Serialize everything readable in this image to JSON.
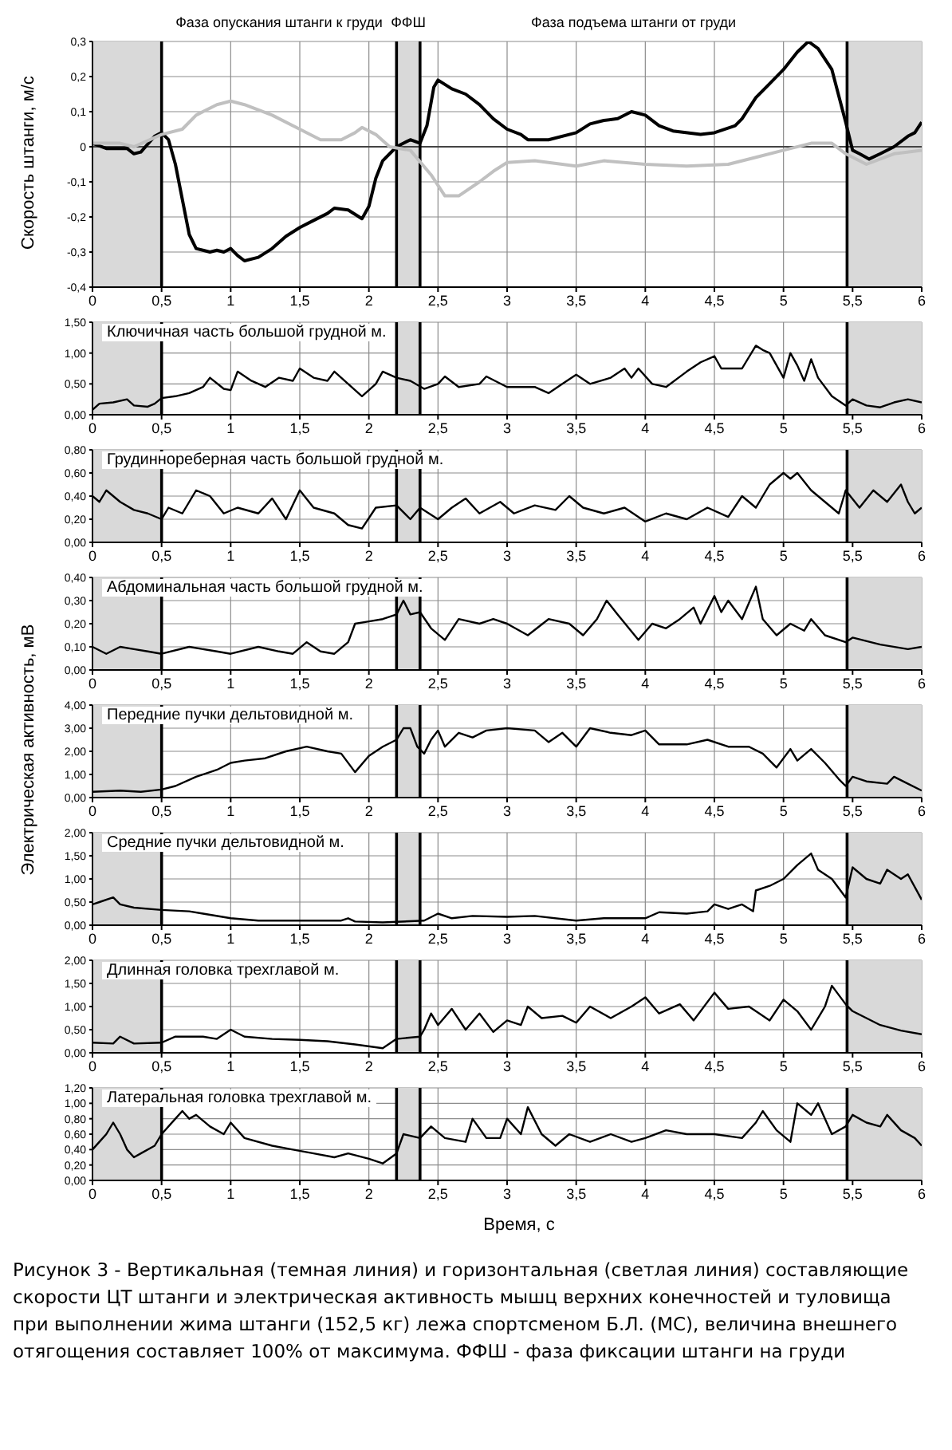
{
  "chart_data": [
    {
      "type": "line",
      "ylabel": "Скорость штанги, м/с",
      "annotations": [
        "Фаза опускания штанги к груди",
        "ФФШ",
        "Фаза подъема штанги от груди"
      ],
      "series": [
        {
          "color": "#000000",
          "x": [
            0,
            0.1,
            0.25,
            0.3,
            0.35,
            0.45,
            0.5,
            0.55,
            0.6,
            0.65,
            0.7,
            0.75,
            0.85,
            0.9,
            0.95,
            1.0,
            1.05,
            1.1,
            1.2,
            1.3,
            1.4,
            1.5,
            1.6,
            1.7,
            1.75,
            1.85,
            1.95,
            2.0,
            2.05,
            2.1,
            2.2,
            2.3,
            2.37,
            2.42,
            2.47,
            2.5,
            2.6,
            2.7,
            2.8,
            2.9,
            3.0,
            3.1,
            3.15,
            3.3,
            3.5,
            3.6,
            3.7,
            3.8,
            3.9,
            4.0,
            4.1,
            4.2,
            4.4,
            4.5,
            4.65,
            4.7,
            4.8,
            4.9,
            5.0,
            5.1,
            5.18,
            5.25,
            5.35,
            5.45,
            5.5,
            5.55,
            5.62,
            5.7,
            5.8,
            5.9,
            5.95,
            6.0
          ],
          "values": [
            0.01,
            -0.005,
            -0.005,
            -0.02,
            -0.015,
            0.03,
            0.04,
            0.02,
            -0.05,
            -0.15,
            -0.25,
            -0.29,
            -0.3,
            -0.295,
            -0.3,
            -0.29,
            -0.31,
            -0.325,
            -0.315,
            -0.29,
            -0.255,
            -0.23,
            -0.21,
            -0.19,
            -0.175,
            -0.18,
            -0.205,
            -0.17,
            -0.09,
            -0.04,
            0.0,
            0.02,
            0.01,
            0.06,
            0.17,
            0.19,
            0.165,
            0.15,
            0.12,
            0.08,
            0.05,
            0.035,
            0.02,
            0.02,
            0.04,
            0.065,
            0.075,
            0.08,
            0.1,
            0.09,
            0.06,
            0.045,
            0.035,
            0.04,
            0.06,
            0.08,
            0.14,
            0.18,
            0.22,
            0.27,
            0.3,
            0.28,
            0.22,
            0.07,
            -0.01,
            -0.02,
            -0.035,
            -0.02,
            0.0,
            0.03,
            0.04,
            0.07
          ]
        },
        {
          "color": "#c0c0c0",
          "x": [
            0,
            0.2,
            0.3,
            0.5,
            0.65,
            0.75,
            0.9,
            1.0,
            1.1,
            1.3,
            1.5,
            1.65,
            1.8,
            1.9,
            1.95,
            2.05,
            2.15,
            2.3,
            2.45,
            2.55,
            2.65,
            2.8,
            2.9,
            3.0,
            3.2,
            3.5,
            3.7,
            4.0,
            4.3,
            4.6,
            4.8,
            5.0,
            5.2,
            5.35,
            5.45,
            5.6,
            5.8,
            6.0
          ],
          "values": [
            0.01,
            0.01,
            0.0,
            0.035,
            0.05,
            0.09,
            0.12,
            0.13,
            0.12,
            0.09,
            0.05,
            0.02,
            0.02,
            0.04,
            0.055,
            0.035,
            0.0,
            -0.01,
            -0.08,
            -0.14,
            -0.14,
            -0.1,
            -0.07,
            -0.045,
            -0.04,
            -0.055,
            -0.04,
            -0.05,
            -0.055,
            -0.05,
            -0.03,
            -0.01,
            0.01,
            0.01,
            -0.02,
            -0.05,
            -0.02,
            -0.01
          ]
        }
      ],
      "xlim": [
        0,
        6
      ],
      "xticks": [
        0,
        {
          "value": 0.5,
          "label": "0,5"
        },
        1,
        {
          "value": 1.5,
          "label": "1,5"
        },
        2,
        {
          "value": 2.5,
          "label": "2,5"
        },
        3,
        {
          "value": 3.5,
          "label": "3,5"
        },
        4,
        {
          "value": 4.5,
          "label": "4,5"
        },
        5,
        {
          "value": 5.5,
          "label": "5,5"
        },
        6
      ],
      "ylim": [
        -0.4,
        0.3
      ],
      "yticks": [
        {
          "value": -0.4,
          "label": "-0,4"
        },
        {
          "value": -0.3,
          "label": "-0,3"
        },
        {
          "value": -0.2,
          "label": "-0,2"
        },
        {
          "value": -0.1,
          "label": "-0,1"
        },
        0,
        {
          "value": 0.1,
          "label": "0,1"
        },
        {
          "value": 0.2,
          "label": "0,2"
        },
        {
          "value": 0.3,
          "label": "0,3"
        }
      ],
      "grid": true,
      "bands": [
        {
          "axis": "x",
          "from": 0,
          "to": 0.5,
          "color": "#d9d9d9"
        },
        {
          "axis": "x",
          "from": 2.2,
          "to": 2.37,
          "color": "#d9d9d9"
        },
        {
          "axis": "x",
          "from": 5.46,
          "to": 6,
          "color": "#d9d9d9"
        }
      ],
      "ref_lines": [
        {
          "axis": "x",
          "value": 0.5,
          "color": "#000000"
        },
        {
          "axis": "x",
          "value": 2.2,
          "color": "#000000"
        },
        {
          "axis": "x",
          "value": 2.37,
          "color": "#000000"
        },
        {
          "axis": "x",
          "value": 5.46,
          "color": "#000000"
        }
      ]
    },
    {
      "type": "line",
      "title": "Ключичная часть большой грудной м.",
      "color": "#000000",
      "x": [
        0,
        0.05,
        0.15,
        0.25,
        0.3,
        0.4,
        0.45,
        0.5,
        0.6,
        0.7,
        0.8,
        0.85,
        0.95,
        1.0,
        1.05,
        1.15,
        1.25,
        1.35,
        1.45,
        1.5,
        1.6,
        1.7,
        1.75,
        1.85,
        1.95,
        2.05,
        2.1,
        2.2,
        2.3,
        2.4,
        2.5,
        2.55,
        2.65,
        2.8,
        2.85,
        3.0,
        3.2,
        3.3,
        3.4,
        3.5,
        3.6,
        3.75,
        3.85,
        3.9,
        3.95,
        4.05,
        4.15,
        4.3,
        4.4,
        4.5,
        4.55,
        4.7,
        4.8,
        4.85,
        4.9,
        5.0,
        5.05,
        5.1,
        5.15,
        5.2,
        5.25,
        5.35,
        5.45,
        5.5,
        5.6,
        5.7,
        5.8,
        5.9,
        6.0
      ],
      "values": [
        0.08,
        0.18,
        0.2,
        0.25,
        0.15,
        0.13,
        0.18,
        0.27,
        0.3,
        0.35,
        0.45,
        0.6,
        0.42,
        0.4,
        0.7,
        0.55,
        0.45,
        0.6,
        0.55,
        0.75,
        0.6,
        0.55,
        0.7,
        0.5,
        0.3,
        0.5,
        0.7,
        0.6,
        0.55,
        0.42,
        0.5,
        0.62,
        0.45,
        0.5,
        0.62,
        0.45,
        0.45,
        0.35,
        0.5,
        0.65,
        0.5,
        0.6,
        0.75,
        0.6,
        0.75,
        0.5,
        0.45,
        0.7,
        0.85,
        0.95,
        0.75,
        0.75,
        1.12,
        1.05,
        1.0,
        0.6,
        1.0,
        0.8,
        0.55,
        0.9,
        0.6,
        0.3,
        0.15,
        0.25,
        0.15,
        0.12,
        0.2,
        0.25,
        0.2
      ],
      "xlim": [
        0,
        6
      ],
      "xticks": [
        0,
        {
          "value": 0.5,
          "label": "0,5"
        },
        1,
        {
          "value": 1.5,
          "label": "1,5"
        },
        2,
        {
          "value": 2.5,
          "label": "2,5"
        },
        3,
        {
          "value": 3.5,
          "label": "3,5"
        },
        4,
        {
          "value": 4.5,
          "label": "4,5"
        },
        5,
        {
          "value": 5.5,
          "label": "5,5"
        },
        6
      ],
      "ylim": [
        0,
        1.5
      ],
      "yticks": [
        {
          "value": 0,
          "label": "0,00"
        },
        {
          "value": 0.5,
          "label": "0,50"
        },
        {
          "value": 1,
          "label": "1,00"
        },
        {
          "value": 1.5,
          "label": "1,50"
        }
      ],
      "grid": true,
      "bands": [
        {
          "axis": "x",
          "from": 0,
          "to": 0.5,
          "color": "#d9d9d9"
        },
        {
          "axis": "x",
          "from": 2.2,
          "to": 2.37,
          "color": "#d9d9d9"
        },
        {
          "axis": "x",
          "from": 5.46,
          "to": 6,
          "color": "#d9d9d9"
        }
      ],
      "ref_lines": [
        {
          "axis": "x",
          "value": 0.5,
          "color": "#000000"
        },
        {
          "axis": "x",
          "value": 2.2,
          "color": "#000000"
        },
        {
          "axis": "x",
          "value": 2.37,
          "color": "#000000"
        },
        {
          "axis": "x",
          "value": 5.46,
          "color": "#000000"
        }
      ]
    },
    {
      "type": "line",
      "title": "Грудиннореберная часть большой грудной м.",
      "color": "#000000",
      "x": [
        0,
        0.05,
        0.1,
        0.2,
        0.3,
        0.4,
        0.5,
        0.55,
        0.65,
        0.75,
        0.85,
        0.95,
        1.05,
        1.2,
        1.3,
        1.4,
        1.5,
        1.6,
        1.75,
        1.85,
        1.95,
        2.05,
        2.2,
        2.3,
        2.37,
        2.5,
        2.6,
        2.7,
        2.8,
        2.95,
        3.05,
        3.2,
        3.35,
        3.45,
        3.55,
        3.7,
        3.85,
        4.0,
        4.15,
        4.3,
        4.45,
        4.6,
        4.7,
        4.8,
        4.9,
        5.0,
        5.05,
        5.1,
        5.2,
        5.3,
        5.4,
        5.45,
        5.55,
        5.65,
        5.75,
        5.85,
        5.9,
        5.95,
        6.0
      ],
      "values": [
        0.4,
        0.35,
        0.45,
        0.35,
        0.28,
        0.25,
        0.2,
        0.3,
        0.25,
        0.45,
        0.4,
        0.25,
        0.3,
        0.25,
        0.38,
        0.2,
        0.45,
        0.3,
        0.25,
        0.15,
        0.12,
        0.3,
        0.32,
        0.2,
        0.3,
        0.2,
        0.3,
        0.38,
        0.25,
        0.35,
        0.25,
        0.32,
        0.28,
        0.4,
        0.3,
        0.25,
        0.3,
        0.18,
        0.25,
        0.2,
        0.3,
        0.22,
        0.4,
        0.3,
        0.5,
        0.6,
        0.55,
        0.6,
        0.45,
        0.35,
        0.25,
        0.45,
        0.3,
        0.45,
        0.35,
        0.5,
        0.35,
        0.25,
        0.3
      ],
      "xlim": [
        0,
        6
      ],
      "xticks": [
        0,
        {
          "value": 0.5,
          "label": "0,5"
        },
        1,
        {
          "value": 1.5,
          "label": "1,5"
        },
        2,
        {
          "value": 2.5,
          "label": "2,5"
        },
        3,
        {
          "value": 3.5,
          "label": "3,5"
        },
        4,
        {
          "value": 4.5,
          "label": "4,5"
        },
        5,
        {
          "value": 5.5,
          "label": "5,5"
        },
        6
      ],
      "ylim": [
        0,
        0.8
      ],
      "yticks": [
        {
          "value": 0,
          "label": "0,00"
        },
        {
          "value": 0.2,
          "label": "0,20"
        },
        {
          "value": 0.4,
          "label": "0,40"
        },
        {
          "value": 0.6,
          "label": "0,60"
        },
        {
          "value": 0.8,
          "label": "0,80"
        }
      ],
      "grid": true,
      "bands": [
        {
          "axis": "x",
          "from": 0,
          "to": 0.5,
          "color": "#d9d9d9"
        },
        {
          "axis": "x",
          "from": 2.2,
          "to": 2.37,
          "color": "#d9d9d9"
        },
        {
          "axis": "x",
          "from": 5.46,
          "to": 6,
          "color": "#d9d9d9"
        }
      ],
      "ref_lines": [
        {
          "axis": "x",
          "value": 0.5,
          "color": "#000000"
        },
        {
          "axis": "x",
          "value": 2.2,
          "color": "#000000"
        },
        {
          "axis": "x",
          "value": 2.37,
          "color": "#000000"
        },
        {
          "axis": "x",
          "value": 5.46,
          "color": "#000000"
        }
      ]
    },
    {
      "type": "line",
      "title": "Абдоминальная часть большой грудной м.",
      "color": "#000000",
      "x": [
        0,
        0.1,
        0.2,
        0.3,
        0.4,
        0.5,
        0.7,
        0.9,
        1.0,
        1.2,
        1.35,
        1.45,
        1.55,
        1.65,
        1.75,
        1.85,
        1.9,
        2.0,
        2.1,
        2.2,
        2.25,
        2.3,
        2.37,
        2.45,
        2.55,
        2.65,
        2.8,
        2.9,
        3.0,
        3.15,
        3.3,
        3.45,
        3.55,
        3.65,
        3.72,
        3.8,
        3.95,
        4.05,
        4.15,
        4.25,
        4.35,
        4.4,
        4.5,
        4.55,
        4.6,
        4.7,
        4.8,
        4.85,
        4.95,
        5.05,
        5.15,
        5.2,
        5.3,
        5.45,
        5.5,
        5.7,
        5.9,
        6.0
      ],
      "values": [
        0.1,
        0.07,
        0.1,
        0.09,
        0.08,
        0.07,
        0.1,
        0.08,
        0.07,
        0.1,
        0.08,
        0.07,
        0.12,
        0.08,
        0.07,
        0.12,
        0.2,
        0.21,
        0.22,
        0.24,
        0.3,
        0.24,
        0.25,
        0.18,
        0.13,
        0.22,
        0.2,
        0.22,
        0.2,
        0.15,
        0.22,
        0.2,
        0.15,
        0.22,
        0.3,
        0.24,
        0.13,
        0.2,
        0.18,
        0.22,
        0.27,
        0.2,
        0.32,
        0.25,
        0.3,
        0.22,
        0.36,
        0.22,
        0.15,
        0.2,
        0.17,
        0.22,
        0.15,
        0.12,
        0.14,
        0.11,
        0.09,
        0.1
      ],
      "xlim": [
        0,
        6
      ],
      "xticks": [
        0,
        {
          "value": 0.5,
          "label": "0,5"
        },
        1,
        {
          "value": 1.5,
          "label": "1,5"
        },
        2,
        {
          "value": 2.5,
          "label": "2,5"
        },
        3,
        {
          "value": 3.5,
          "label": "3,5"
        },
        4,
        {
          "value": 4.5,
          "label": "4,5"
        },
        5,
        {
          "value": 5.5,
          "label": "5,5"
        },
        6
      ],
      "ylim": [
        0,
        0.4
      ],
      "yticks": [
        {
          "value": 0,
          "label": "0,00"
        },
        {
          "value": 0.1,
          "label": "0,10"
        },
        {
          "value": 0.2,
          "label": "0,20"
        },
        {
          "value": 0.3,
          "label": "0,30"
        },
        {
          "value": 0.4,
          "label": "0,40"
        }
      ],
      "grid": true,
      "bands": [
        {
          "axis": "x",
          "from": 0,
          "to": 0.5,
          "color": "#d9d9d9"
        },
        {
          "axis": "x",
          "from": 2.2,
          "to": 2.37,
          "color": "#d9d9d9"
        },
        {
          "axis": "x",
          "from": 5.46,
          "to": 6,
          "color": "#d9d9d9"
        }
      ],
      "ref_lines": [
        {
          "axis": "x",
          "value": 0.5,
          "color": "#000000"
        },
        {
          "axis": "x",
          "value": 2.2,
          "color": "#000000"
        },
        {
          "axis": "x",
          "value": 2.37,
          "color": "#000000"
        },
        {
          "axis": "x",
          "value": 5.46,
          "color": "#000000"
        }
      ]
    },
    {
      "type": "line",
      "title": "Передние пучки дельтовидной м.",
      "ylabel": "Электрическая активность, мВ",
      "color": "#000000",
      "x": [
        0,
        0.2,
        0.35,
        0.5,
        0.6,
        0.75,
        0.9,
        1.0,
        1.1,
        1.25,
        1.4,
        1.55,
        1.7,
        1.8,
        1.9,
        2.0,
        2.1,
        2.2,
        2.25,
        2.3,
        2.35,
        2.4,
        2.45,
        2.5,
        2.55,
        2.65,
        2.75,
        2.85,
        3.0,
        3.2,
        3.3,
        3.4,
        3.5,
        3.6,
        3.75,
        3.9,
        4.0,
        4.1,
        4.3,
        4.45,
        4.6,
        4.75,
        4.85,
        4.95,
        5.05,
        5.1,
        5.2,
        5.3,
        5.4,
        5.45,
        5.5,
        5.6,
        5.75,
        5.8,
        5.9,
        6.0
      ],
      "values": [
        0.25,
        0.3,
        0.25,
        0.35,
        0.5,
        0.9,
        1.2,
        1.5,
        1.6,
        1.7,
        2.0,
        2.2,
        2.0,
        1.9,
        1.1,
        1.8,
        2.2,
        2.5,
        3.0,
        3.0,
        2.2,
        1.9,
        2.5,
        2.9,
        2.2,
        2.8,
        2.6,
        2.9,
        3.0,
        2.9,
        2.4,
        2.8,
        2.2,
        3.0,
        2.8,
        2.7,
        2.9,
        2.3,
        2.3,
        2.5,
        2.2,
        2.2,
        1.9,
        1.3,
        2.1,
        1.6,
        2.1,
        1.5,
        0.8,
        0.5,
        0.9,
        0.7,
        0.6,
        0.9,
        0.6,
        0.3
      ],
      "xlim": [
        0,
        6
      ],
      "xticks": [
        0,
        {
          "value": 0.5,
          "label": "0,5"
        },
        1,
        {
          "value": 1.5,
          "label": "1,5"
        },
        2,
        {
          "value": 2.5,
          "label": "2,5"
        },
        3,
        {
          "value": 3.5,
          "label": "3,5"
        },
        4,
        {
          "value": 4.5,
          "label": "4,5"
        },
        5,
        {
          "value": 5.5,
          "label": "5,5"
        },
        6
      ],
      "ylim": [
        0,
        4
      ],
      "yticks": [
        {
          "value": 0,
          "label": "0,00"
        },
        {
          "value": 1,
          "label": "1,00"
        },
        {
          "value": 2,
          "label": "2,00"
        },
        {
          "value": 3,
          "label": "3,00"
        },
        {
          "value": 4,
          "label": "4,00"
        }
      ],
      "grid": true,
      "bands": [
        {
          "axis": "x",
          "from": 0,
          "to": 0.5,
          "color": "#d9d9d9"
        },
        {
          "axis": "x",
          "from": 2.2,
          "to": 2.37,
          "color": "#d9d9d9"
        },
        {
          "axis": "x",
          "from": 5.46,
          "to": 6,
          "color": "#d9d9d9"
        }
      ],
      "ref_lines": [
        {
          "axis": "x",
          "value": 0.5,
          "color": "#000000"
        },
        {
          "axis": "x",
          "value": 2.2,
          "color": "#000000"
        },
        {
          "axis": "x",
          "value": 2.37,
          "color": "#000000"
        },
        {
          "axis": "x",
          "value": 5.46,
          "color": "#000000"
        }
      ]
    },
    {
      "type": "line",
      "title": "Средние пучки дельтовидной м.",
      "color": "#000000",
      "x": [
        0,
        0.05,
        0.15,
        0.2,
        0.3,
        0.5,
        0.7,
        0.8,
        1.0,
        1.2,
        1.5,
        1.8,
        1.85,
        1.9,
        2.1,
        2.4,
        2.5,
        2.6,
        2.75,
        3.0,
        3.2,
        3.5,
        3.7,
        4.0,
        4.1,
        4.3,
        4.45,
        4.5,
        4.6,
        4.7,
        4.78,
        4.8,
        4.9,
        5.0,
        5.1,
        5.2,
        5.25,
        5.35,
        5.45,
        5.5,
        5.6,
        5.7,
        5.75,
        5.85,
        5.9,
        6.0
      ],
      "values": [
        0.45,
        0.5,
        0.6,
        0.45,
        0.38,
        0.33,
        0.3,
        0.25,
        0.15,
        0.1,
        0.1,
        0.1,
        0.15,
        0.08,
        0.06,
        0.1,
        0.25,
        0.15,
        0.2,
        0.18,
        0.2,
        0.1,
        0.15,
        0.15,
        0.28,
        0.25,
        0.3,
        0.45,
        0.35,
        0.45,
        0.3,
        0.75,
        0.85,
        1.0,
        1.3,
        1.55,
        1.2,
        1.0,
        0.6,
        1.25,
        1.0,
        0.9,
        1.2,
        1.0,
        1.1,
        0.55
      ],
      "xlim": [
        0,
        6
      ],
      "xticks": [
        0,
        {
          "value": 0.5,
          "label": "0,5"
        },
        1,
        {
          "value": 1.5,
          "label": "1,5"
        },
        2,
        {
          "value": 2.5,
          "label": "2,5"
        },
        3,
        {
          "value": 3.5,
          "label": "3,5"
        },
        4,
        {
          "value": 4.5,
          "label": "4,5"
        },
        5,
        {
          "value": 5.5,
          "label": "5,5"
        },
        6
      ],
      "ylim": [
        0,
        2
      ],
      "yticks": [
        {
          "value": 0,
          "label": "0,00"
        },
        {
          "value": 0.5,
          "label": "0,50"
        },
        {
          "value": 1,
          "label": "1,00"
        },
        {
          "value": 1.5,
          "label": "1,50"
        },
        {
          "value": 2,
          "label": "2,00"
        }
      ],
      "grid": true,
      "bands": [
        {
          "axis": "x",
          "from": 0,
          "to": 0.5,
          "color": "#d9d9d9"
        },
        {
          "axis": "x",
          "from": 2.2,
          "to": 2.37,
          "color": "#d9d9d9"
        },
        {
          "axis": "x",
          "from": 5.46,
          "to": 6,
          "color": "#d9d9d9"
        }
      ],
      "ref_lines": [
        {
          "axis": "x",
          "value": 0.5,
          "color": "#000000"
        },
        {
          "axis": "x",
          "value": 2.2,
          "color": "#000000"
        },
        {
          "axis": "x",
          "value": 2.37,
          "color": "#000000"
        },
        {
          "axis": "x",
          "value": 5.46,
          "color": "#000000"
        }
      ]
    },
    {
      "type": "line",
      "title": "Длинная головка трехглавой м.",
      "color": "#000000",
      "x": [
        0,
        0.15,
        0.2,
        0.3,
        0.5,
        0.6,
        0.8,
        0.9,
        1.0,
        1.1,
        1.3,
        1.5,
        1.7,
        1.9,
        2.1,
        2.2,
        2.37,
        2.4,
        2.45,
        2.5,
        2.6,
        2.7,
        2.8,
        2.9,
        3.0,
        3.1,
        3.15,
        3.25,
        3.4,
        3.5,
        3.6,
        3.75,
        3.9,
        4.0,
        4.1,
        4.25,
        4.35,
        4.5,
        4.6,
        4.75,
        4.9,
        5.0,
        5.1,
        5.2,
        5.3,
        5.35,
        5.45,
        5.5,
        5.6,
        5.7,
        5.85,
        6.0
      ],
      "values": [
        0.22,
        0.2,
        0.35,
        0.2,
        0.22,
        0.35,
        0.35,
        0.3,
        0.5,
        0.35,
        0.3,
        0.28,
        0.25,
        0.18,
        0.1,
        0.3,
        0.35,
        0.5,
        0.85,
        0.6,
        0.95,
        0.5,
        0.85,
        0.45,
        0.7,
        0.6,
        1.0,
        0.75,
        0.8,
        0.65,
        1.0,
        0.75,
        1.0,
        1.2,
        0.85,
        1.05,
        0.7,
        1.3,
        0.95,
        1.0,
        0.7,
        1.15,
        0.9,
        0.5,
        1.0,
        1.45,
        1.05,
        0.9,
        0.75,
        0.6,
        0.48,
        0.4
      ],
      "xlim": [
        0,
        6
      ],
      "xticks": [
        0,
        {
          "value": 0.5,
          "label": "0,5"
        },
        1,
        {
          "value": 1.5,
          "label": "1,5"
        },
        2,
        {
          "value": 2.5,
          "label": "2,5"
        },
        3,
        {
          "value": 3.5,
          "label": "3,5"
        },
        4,
        {
          "value": 4.5,
          "label": "4,5"
        },
        5,
        {
          "value": 5.5,
          "label": "5,5"
        },
        6
      ],
      "ylim": [
        0,
        2
      ],
      "yticks": [
        {
          "value": 0,
          "label": "0,00"
        },
        {
          "value": 0.5,
          "label": "0,50"
        },
        {
          "value": 1,
          "label": "1,00"
        },
        {
          "value": 1.5,
          "label": "1,50"
        },
        {
          "value": 2,
          "label": "2,00"
        }
      ],
      "grid": true,
      "bands": [
        {
          "axis": "x",
          "from": 0,
          "to": 0.5,
          "color": "#d9d9d9"
        },
        {
          "axis": "x",
          "from": 2.2,
          "to": 2.37,
          "color": "#d9d9d9"
        },
        {
          "axis": "x",
          "from": 5.46,
          "to": 6,
          "color": "#d9d9d9"
        }
      ],
      "ref_lines": [
        {
          "axis": "x",
          "value": 0.5,
          "color": "#000000"
        },
        {
          "axis": "x",
          "value": 2.2,
          "color": "#000000"
        },
        {
          "axis": "x",
          "value": 2.37,
          "color": "#000000"
        },
        {
          "axis": "x",
          "value": 5.46,
          "color": "#000000"
        }
      ]
    },
    {
      "type": "line",
      "title": "Латеральная головка трехглавой м.",
      "xlabel": "Время, с",
      "color": "#000000",
      "annotations": [
        "Рисунок 3 - Вертикальная (темная линия) и горизонтальная (светлая линия) составляющие скорости ЦТ штанги и электрическая активность мышц верхних конечностей и туловища при выполнении жима штанги (152,5 кг) лежа спортсменом Б.Л. (МС), величина внешнего отягощения составляет 100% от максимума. ФФШ - фаза фиксации штанги на груди"
      ],
      "x": [
        0,
        0.05,
        0.1,
        0.15,
        0.2,
        0.25,
        0.3,
        0.35,
        0.45,
        0.5,
        0.6,
        0.65,
        0.7,
        0.75,
        0.85,
        0.95,
        1.0,
        1.1,
        1.3,
        1.45,
        1.6,
        1.75,
        1.85,
        2.0,
        2.1,
        2.2,
        2.25,
        2.37,
        2.45,
        2.55,
        2.7,
        2.75,
        2.85,
        2.95,
        3.0,
        3.1,
        3.15,
        3.25,
        3.35,
        3.45,
        3.6,
        3.75,
        3.9,
        4.0,
        4.15,
        4.3,
        4.5,
        4.7,
        4.8,
        4.85,
        4.95,
        5.05,
        5.1,
        5.2,
        5.25,
        5.35,
        5.45,
        5.5,
        5.6,
        5.7,
        5.75,
        5.85,
        5.95,
        6.0
      ],
      "values": [
        0.4,
        0.5,
        0.6,
        0.75,
        0.6,
        0.4,
        0.3,
        0.35,
        0.45,
        0.6,
        0.8,
        0.9,
        0.8,
        0.85,
        0.7,
        0.6,
        0.75,
        0.55,
        0.45,
        0.4,
        0.35,
        0.3,
        0.35,
        0.28,
        0.22,
        0.35,
        0.6,
        0.55,
        0.7,
        0.55,
        0.5,
        0.8,
        0.55,
        0.55,
        0.8,
        0.6,
        0.95,
        0.6,
        0.45,
        0.6,
        0.5,
        0.6,
        0.5,
        0.55,
        0.65,
        0.6,
        0.6,
        0.55,
        0.75,
        0.9,
        0.65,
        0.5,
        1.0,
        0.85,
        1.0,
        0.6,
        0.7,
        0.85,
        0.75,
        0.7,
        0.85,
        0.65,
        0.55,
        0.45
      ],
      "xlim": [
        0,
        6
      ],
      "xticks": [
        0,
        {
          "value": 0.5,
          "label": "0,5"
        },
        1,
        {
          "value": 1.5,
          "label": "1,5"
        },
        2,
        {
          "value": 2.5,
          "label": "2,5"
        },
        3,
        {
          "value": 3.5,
          "label": "3,5"
        },
        4,
        {
          "value": 4.5,
          "label": "4,5"
        },
        5,
        {
          "value": 5.5,
          "label": "5,5"
        },
        6
      ],
      "ylim": [
        0,
        1.2
      ],
      "yticks": [
        {
          "value": 0,
          "label": "0,00"
        },
        {
          "value": 0.2,
          "label": "0,20"
        },
        {
          "value": 0.4,
          "label": "0,40"
        },
        {
          "value": 0.6,
          "label": "0,60"
        },
        {
          "value": 0.8,
          "label": "0,80"
        },
        {
          "value": 1,
          "label": "1,00"
        },
        {
          "value": 1.2,
          "label": "1,20"
        }
      ],
      "grid": true,
      "bands": [
        {
          "axis": "x",
          "from": 0,
          "to": 0.5,
          "color": "#d9d9d9"
        },
        {
          "axis": "x",
          "from": 2.2,
          "to": 2.37,
          "color": "#d9d9d9"
        },
        {
          "axis": "x",
          "from": 5.46,
          "to": 6,
          "color": "#d9d9d9"
        }
      ],
      "ref_lines": [
        {
          "axis": "x",
          "value": 0.5,
          "color": "#000000"
        },
        {
          "axis": "x",
          "value": 2.2,
          "color": "#000000"
        },
        {
          "axis": "x",
          "value": 2.37,
          "color": "#000000"
        },
        {
          "axis": "x",
          "value": 5.46,
          "color": "#000000"
        }
      ]
    }
  ]
}
